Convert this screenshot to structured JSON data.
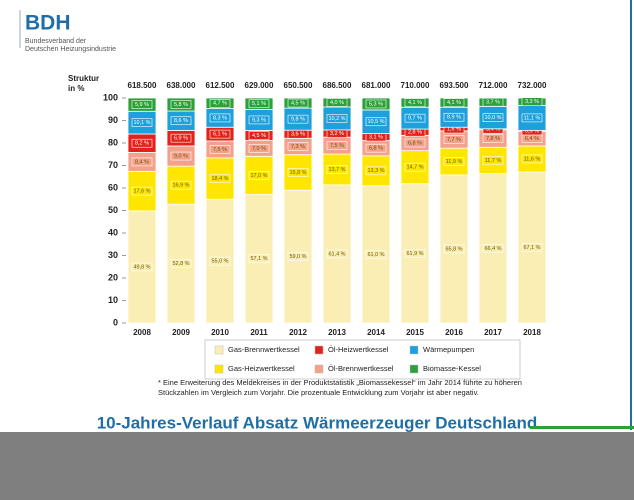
{
  "logo": {
    "name": "BDH",
    "lines": [
      "Bundesverband der",
      "Deutschen Heizungsindustrie"
    ]
  },
  "chart_data": {
    "type": "stacked_bar",
    "title": "10-Jahres-Verlauf Absatz Wärmeerzeuger Deutschland",
    "y_label": [
      "Struktur",
      "in %"
    ],
    "footnote": [
      "* Eine Erweiterung des Meldekreises in der Produktstatistik „Biomassekessel“ im Jahr 2014 führte zu höheren",
      "Stückzahlen im Vergleich zum Vorjahr. Die prozentuale Entwicklung zum Vorjahr ist aber negativ."
    ],
    "categories": [
      "2008",
      "2009",
      "2010",
      "2011",
      "2012",
      "2013",
      "2014",
      "2015",
      "2016",
      "2017",
      "2018"
    ],
    "totals": {
      "values": [
        618500,
        638000,
        612500,
        629000,
        650500,
        686500,
        681000,
        710000,
        693500,
        712000,
        732000
      ],
      "value_labels": [
        "618.500",
        "638.000",
        "612.500",
        "629.000",
        "650.500",
        "686.500",
        "681.000",
        "710.000",
        "693.500",
        "712.000",
        "732.000"
      ]
    },
    "ylim": [
      0,
      100
    ],
    "yticks": [
      0,
      10,
      20,
      30,
      40,
      50,
      60,
      70,
      80,
      90,
      100
    ],
    "series": [
      {
        "name": "Gas-Brennwertkessel",
        "color": "#fbeeb4",
        "values": [
          49.8,
          52.8,
          55.0,
          57.1,
          59.0,
          61.4,
          61.0,
          61.9,
          65.8,
          66.4,
          67.1
        ],
        "value_labels": [
          "49,8 %",
          "52,8 %",
          "55,0 %",
          "57,1 %",
          "59,0 %",
          "61,4 %",
          "61,0 %",
          "61,9 %",
          "65,8 %",
          "66,4 %",
          "67,1 %"
        ]
      },
      {
        "name": "Gas-Heizwertkessel",
        "color": "#ffe600",
        "values": [
          17.6,
          16.9,
          18.4,
          17.0,
          15.8,
          13.7,
          13.3,
          14.7,
          11.9,
          11.7,
          11.6
        ],
        "value_labels": [
          "17,6 %",
          "16,9 %",
          "18,4 %",
          "17,0 %",
          "15,8 %",
          "13,7 %",
          "13,3 %",
          "14,7 %",
          "11,9 %",
          "11,7 %",
          "11,6 %"
        ]
      },
      {
        "name": "Öl-Brennwertkessel",
        "color": "#f4a08a",
        "values": [
          8.4,
          9.0,
          7.5,
          7.0,
          7.3,
          7.5,
          6.8,
          6.8,
          7.7,
          7.8,
          6.4
        ],
        "value_labels": [
          "8,4 %",
          "9,0 %",
          "7,5 %",
          "7,0 %",
          "7,3 %",
          "7,5 %",
          "6,8 %",
          "6,8 %",
          "7,7 %",
          "7,8 %",
          "6,4 %"
        ]
      },
      {
        "name": "Öl-Heizwertkessel",
        "color": "#e2231a",
        "values": [
          8.2,
          6.9,
          6.1,
          4.5,
          3.6,
          3.2,
          3.1,
          2.8,
          1.6,
          0.4,
          0.5
        ],
        "value_labels": [
          "8,2 %",
          "6,9 %",
          "6,1 %",
          "4,5 %",
          "3,6 %",
          "3,2 %",
          "3,1 %",
          "2,8 %",
          "1,6 %",
          "0,4 %",
          "0,5 %"
        ]
      },
      {
        "name": "Wärmepumpen",
        "color": "#1ea0dc",
        "values": [
          10.1,
          8.6,
          8.3,
          9.3,
          9.8,
          10.2,
          10.5,
          9.7,
          8.9,
          10.0,
          11.1
        ],
        "value_labels": [
          "10,1 %",
          "8,6 %",
          "8,3 %",
          "9,3 %",
          "9,8 %",
          "10,2 %",
          "10,5 %",
          "9,7 %",
          "8,9 %",
          "10,0 %",
          "11,1 %"
        ]
      },
      {
        "name": "Biomasse-Kessel",
        "color": "#2aa13a",
        "values": [
          5.9,
          5.8,
          4.7,
          5.1,
          4.5,
          4.0,
          5.3,
          4.1,
          4.1,
          3.7,
          3.3
        ],
        "value_labels": [
          "5,9 %",
          "5,8 %",
          "4,7 %",
          "5,1 %",
          "4,5 %",
          "4,0 %",
          "5,3 %",
          "4,1 %",
          "4,1 %",
          "3,7 %",
          "3,3 %"
        ]
      }
    ]
  }
}
